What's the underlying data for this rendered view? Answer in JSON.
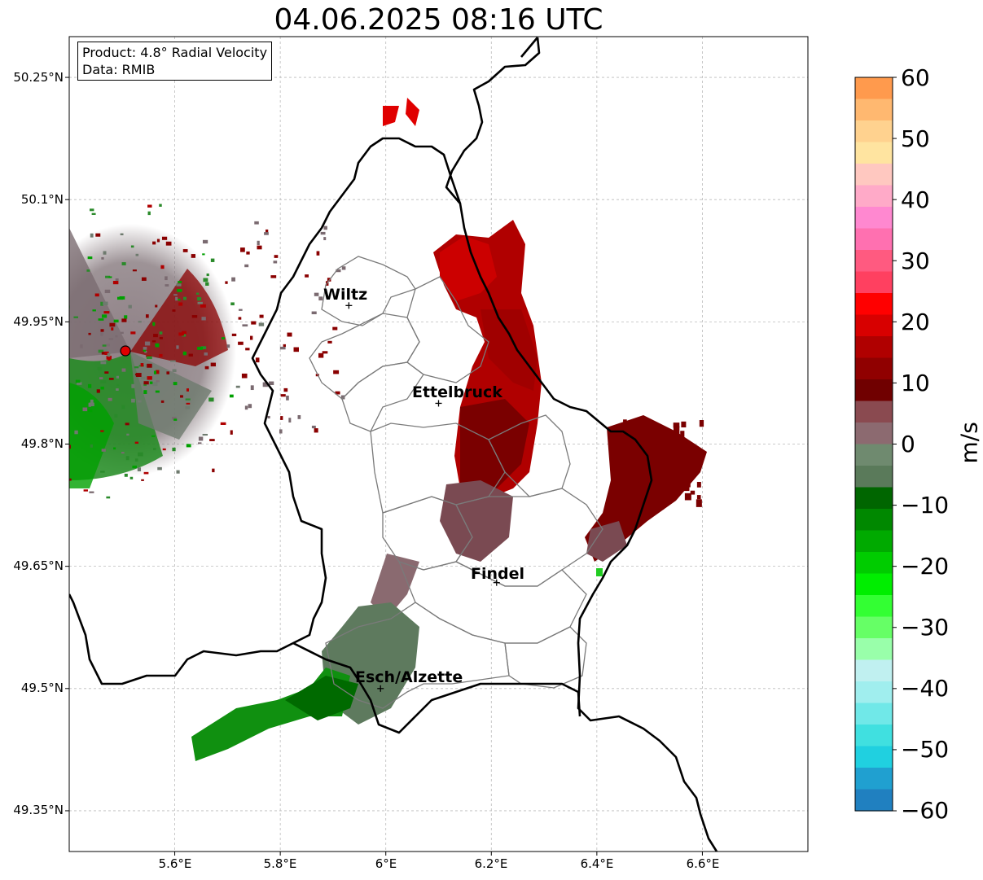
{
  "title": "04.06.2025 08:16 UTC",
  "infobox": {
    "line1": "Product: 4.8° Radial Velocity",
    "line2": "Data: RMIB"
  },
  "axes": {
    "x_ticks": [
      "5.6°E",
      "5.8°E",
      "6°E",
      "6.2°E",
      "6.4°E",
      "6.6°E"
    ],
    "y_ticks": [
      "50.25°N",
      "50.1°N",
      "49.95°N",
      "49.8°N",
      "49.65°N",
      "49.5°N",
      "49.35°N"
    ],
    "lon_range": [
      5.4,
      6.8
    ],
    "lat_range": [
      49.3,
      50.3
    ],
    "grid": true
  },
  "cities": [
    {
      "name": "Wiltz",
      "lon": 5.93,
      "lat": 49.97
    },
    {
      "name": "Ettelbruck",
      "lon": 6.1,
      "lat": 49.85
    },
    {
      "name": "Findel",
      "lon": 6.21,
      "lat": 49.63
    },
    {
      "name": "Esch/Alzette",
      "lon": 5.99,
      "lat": 49.5
    }
  ],
  "radar_site": {
    "lon": 5.505,
    "lat": 49.915
  },
  "colorbar": {
    "unit": "m/s",
    "min": -60,
    "max": 60,
    "ticks": [
      "60",
      "50",
      "40",
      "30",
      "20",
      "10",
      "0",
      "−10",
      "−20",
      "−30",
      "−40",
      "−50",
      "−60"
    ],
    "colors": [
      "#ff9a4d",
      "#ffb870",
      "#ffd28f",
      "#ffe4a0",
      "#ffc8c0",
      "#ffaac8",
      "#ff88d0",
      "#ff70b0",
      "#ff5a80",
      "#ff4060",
      "#ff0000",
      "#d80000",
      "#b00000",
      "#900000",
      "#700000",
      "#8a4a50",
      "#8c6a70",
      "#6f8a6f",
      "#5a7a5a",
      "#006600",
      "#008800",
      "#00aa00",
      "#00cc00",
      "#00ee00",
      "#33ff33",
      "#66ff66",
      "#99ffaa",
      "#c0f0f0",
      "#a0eeee",
      "#70e8e8",
      "#40e0e0",
      "#20d0e0",
      "#20a0d0",
      "#2080c0"
    ]
  },
  "colors": {
    "border": "#000000",
    "admin": "#7a7a7a",
    "inbound_dark": "#006400",
    "outbound_dark": "#800000",
    "near_zero": "#7a6a6e"
  }
}
